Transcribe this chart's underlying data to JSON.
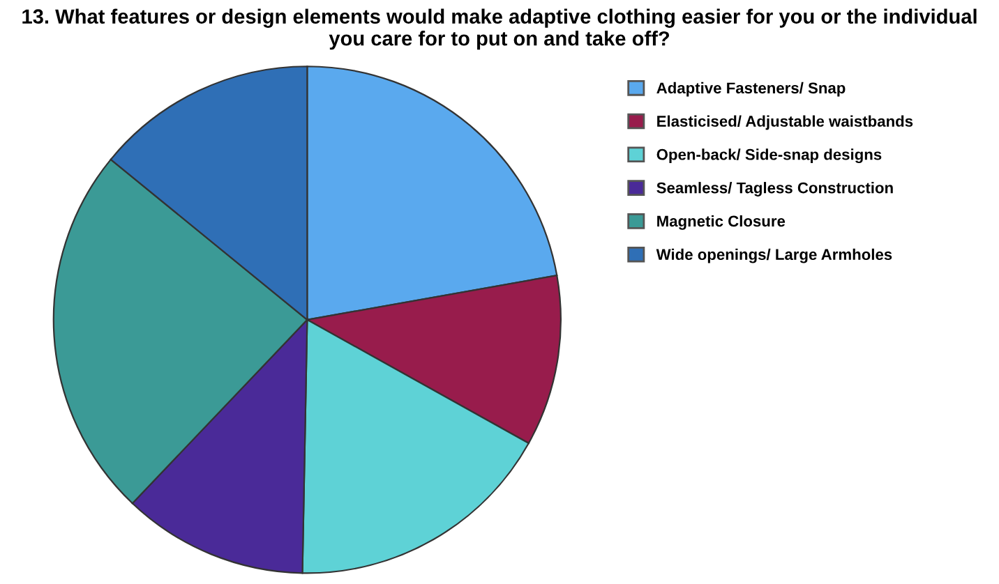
{
  "chart_data": {
    "type": "pie",
    "title": "13. What features or design elements would make adaptive clothing easier for you or the individual you care for to put on and take off?",
    "categories": [
      "Adaptive Fasteners/ Snap",
      "Elasticised/ Adjustable waistbands",
      "Open-back/ Side-snap designs",
      "Seamless/ Tagless Construction",
      "Magnetic Closure",
      "Wide openings/ Large Armholes"
    ],
    "values": [
      22.2,
      10.9,
      17.2,
      11.8,
      23.8,
      14.1
    ],
    "colors": [
      "#5aa9ee",
      "#981c4c",
      "#5ed2d6",
      "#4a2a98",
      "#3b9a96",
      "#2f6fb6"
    ],
    "legend": "right"
  }
}
